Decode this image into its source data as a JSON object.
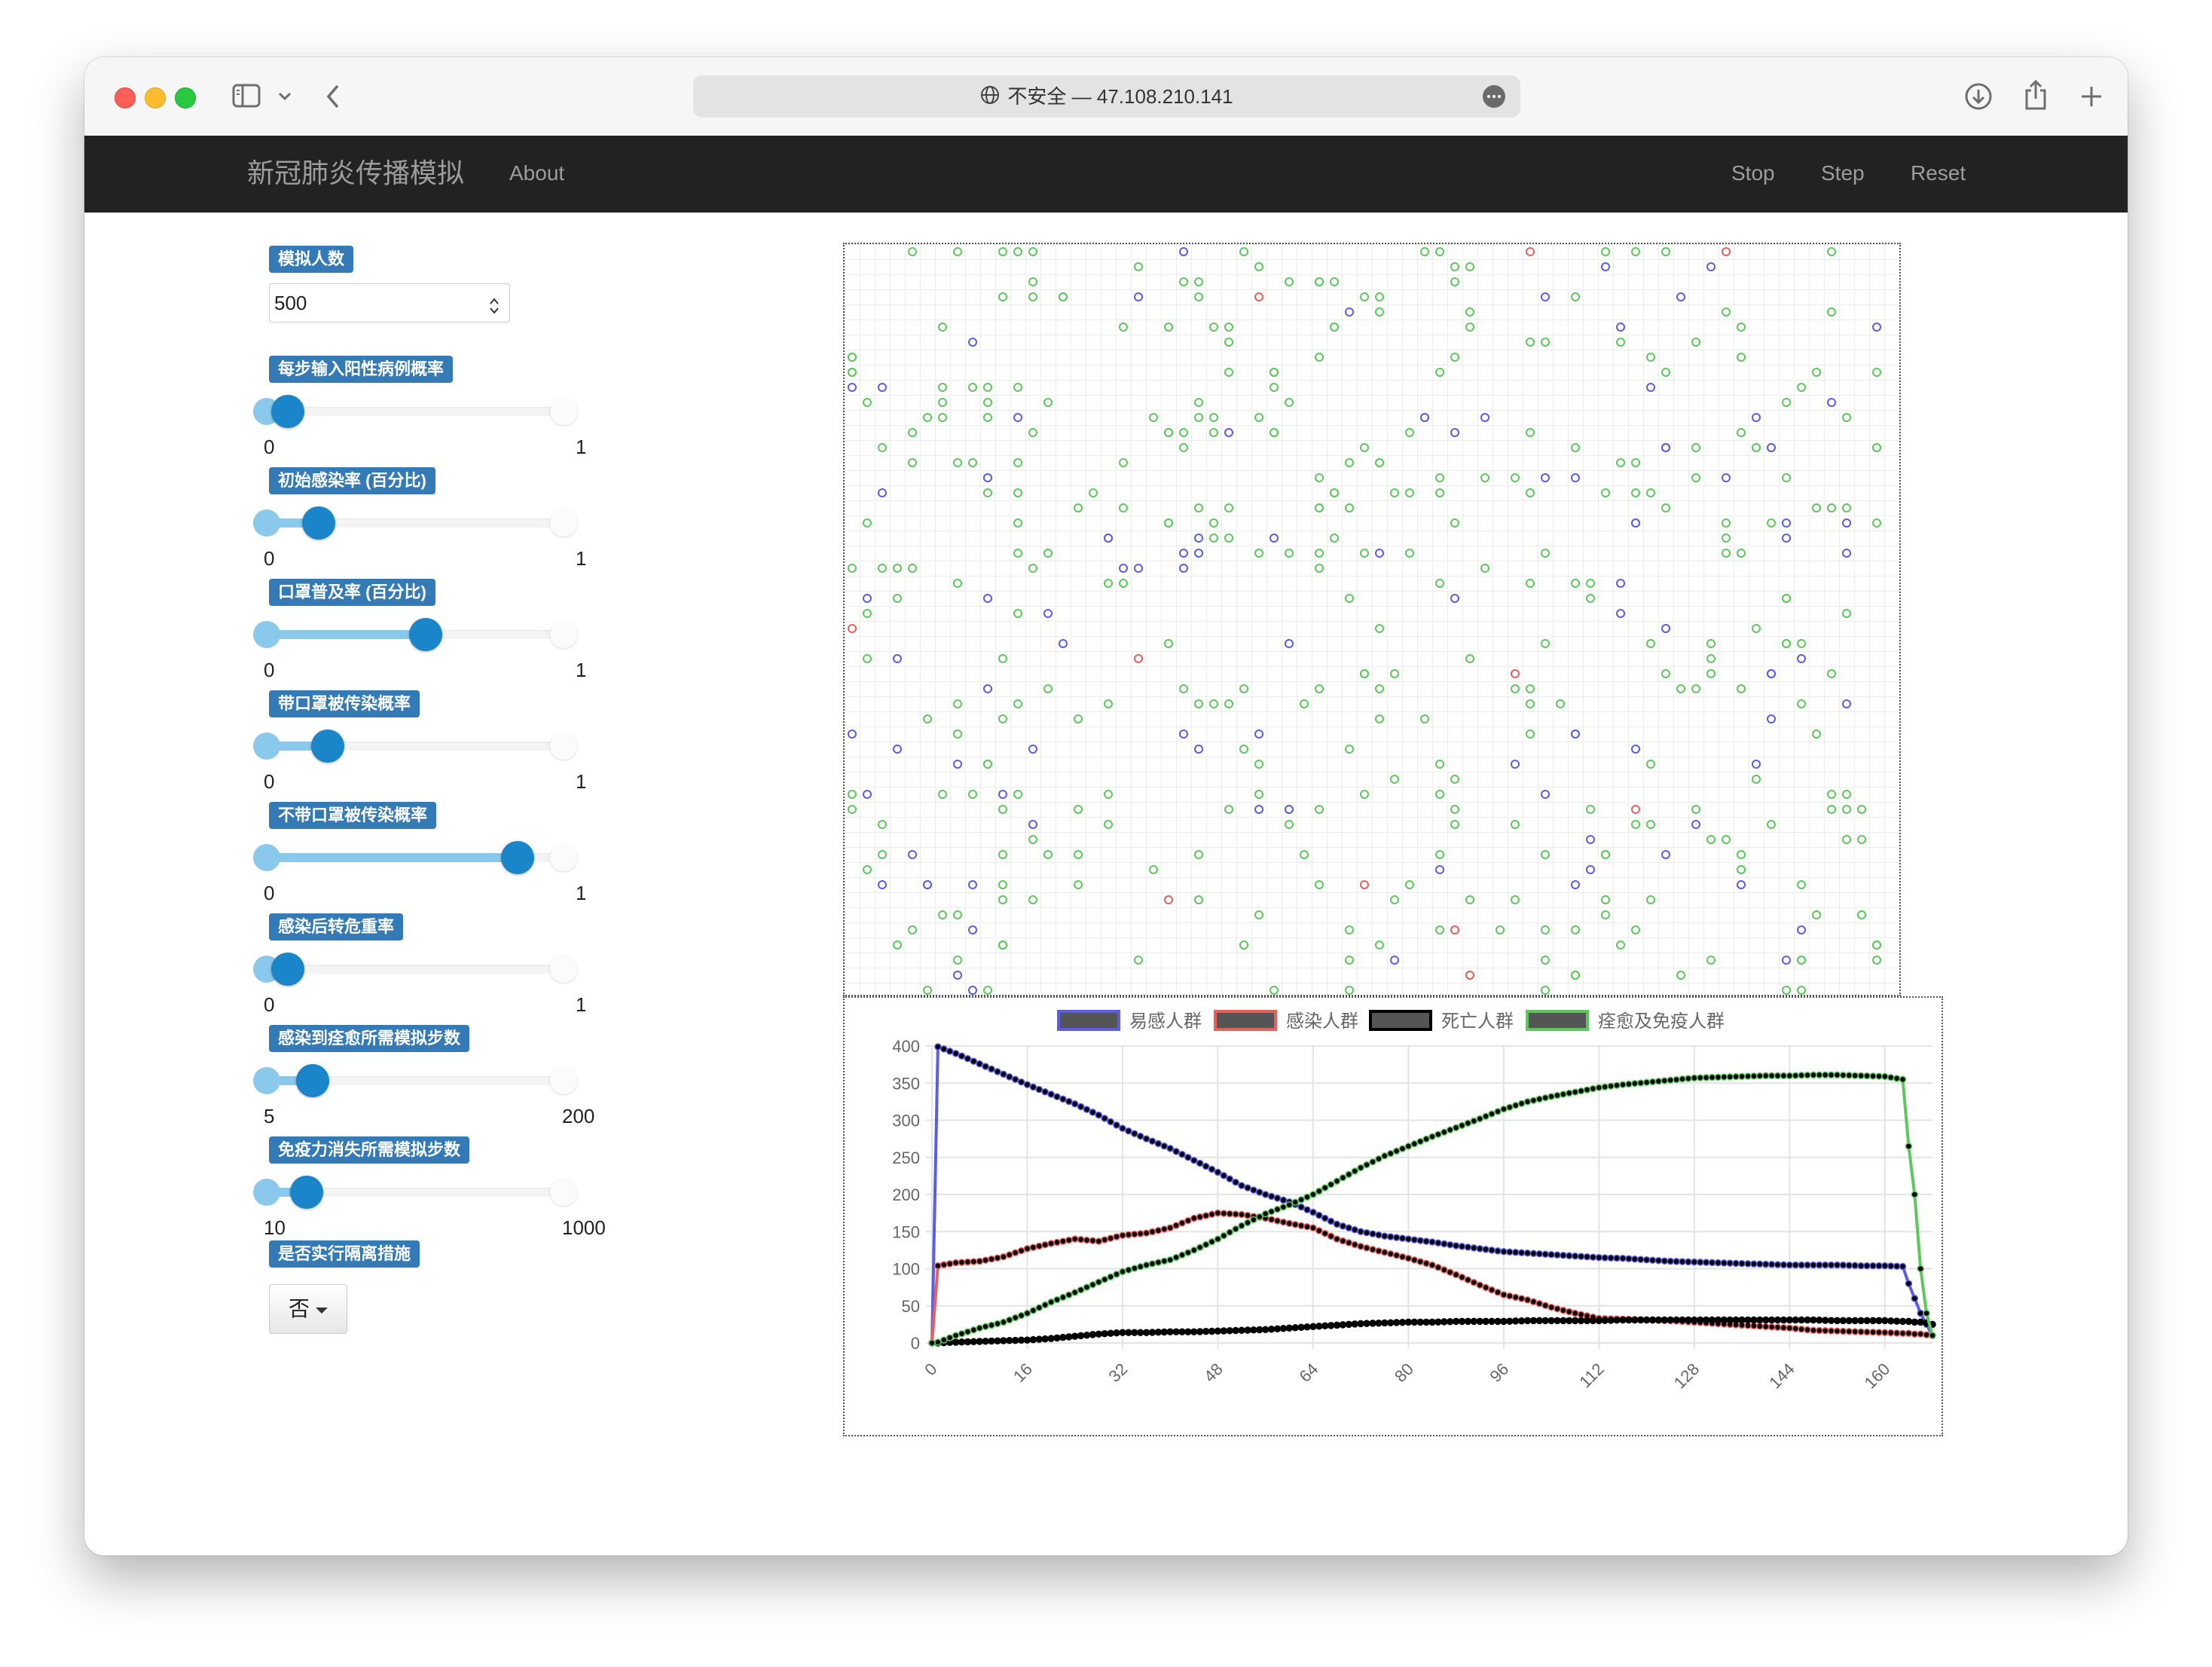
{
  "browser": {
    "url_security": "不安全",
    "url_separator": "—",
    "url_host": "47.108.210.141",
    "icons": [
      "sidebar-icon",
      "chevron-down-icon",
      "back-icon",
      "globe-icon",
      "more-icon",
      "download-icon",
      "share-icon",
      "new-tab-icon"
    ]
  },
  "navbar": {
    "brand": "新冠肺炎传播模拟",
    "about": "About",
    "stop": "Stop",
    "step": "Step",
    "reset": "Reset"
  },
  "controls": {
    "population": {
      "label": "模拟人数",
      "value": "500"
    },
    "sliders": [
      {
        "label": "每步输入阳性病例概率",
        "min": "0",
        "max": "1",
        "fraction": 0.05
      },
      {
        "label": "初始感染率 (百分比)",
        "min": "0",
        "max": "1",
        "fraction": 0.15
      },
      {
        "label": "口罩普及率 (百分比)",
        "min": "0",
        "max": "1",
        "fraction": 0.5
      },
      {
        "label": "带口罩被传染概率",
        "min": "0",
        "max": "1",
        "fraction": 0.18
      },
      {
        "label": "不带口罩被传染概率",
        "min": "0",
        "max": "1",
        "fraction": 0.8
      },
      {
        "label": "感染后转危重率",
        "min": "0",
        "max": "1",
        "fraction": 0.05
      },
      {
        "label": "感染到痊愈所需模拟步数",
        "min": "5",
        "max": "200",
        "fraction": 0.13
      },
      {
        "label": "免疫力消失所需模拟步数",
        "min": "10",
        "max": "1000",
        "fraction": 0.11
      }
    ],
    "isolation": {
      "label": "是否实行隔离措施",
      "value": "否"
    }
  },
  "colors": {
    "susceptible": "#5b5ce8",
    "infected": "#e8605c",
    "dead": "#000000",
    "recovered": "#5cc85c",
    "navbar": "#222222",
    "label_bg": "#337ab7"
  },
  "simulation": {
    "counts": {
      "susceptible": 92,
      "infected": 11,
      "recovered": 359
    }
  },
  "chart_data": {
    "type": "line",
    "title": "",
    "xlabel": "",
    "ylabel": "",
    "ylim": [
      0,
      400
    ],
    "yticks": [
      "0",
      "50",
      "100",
      "150",
      "200",
      "250",
      "300",
      "350",
      "400"
    ],
    "xticks": [
      "0",
      "16",
      "32",
      "48",
      "64",
      "80",
      "96",
      "112",
      "128",
      "144",
      "160"
    ],
    "xlim": [
      0,
      168
    ],
    "x": [
      0,
      1,
      4,
      8,
      12,
      16,
      20,
      24,
      28,
      32,
      36,
      40,
      44,
      48,
      52,
      56,
      60,
      64,
      68,
      72,
      76,
      80,
      84,
      88,
      92,
      96,
      100,
      104,
      108,
      112,
      116,
      120,
      124,
      128,
      132,
      136,
      140,
      144,
      148,
      152,
      156,
      160,
      163,
      164,
      165,
      166,
      167,
      168
    ],
    "legend": [
      "易感人群",
      "感染人群",
      "死亡人群",
      "痊愈及免疫人群"
    ],
    "series": [
      {
        "name": "易感人群",
        "color": "#5b5ce8",
        "values": [
          0,
          399,
          390,
          376,
          362,
          348,
          335,
          322,
          307,
          289,
          275,
          262,
          246,
          230,
          212,
          200,
          190,
          176,
          160,
          150,
          144,
          140,
          136,
          131,
          127,
          123,
          121,
          119,
          117,
          115,
          114,
          112,
          110,
          109,
          108,
          107,
          106,
          105,
          105,
          105,
          104,
          104,
          103,
          80,
          60,
          40,
          25,
          10
        ]
      },
      {
        "name": "感染人群",
        "color": "#e8605c",
        "values": [
          0,
          104,
          108,
          110,
          116,
          127,
          134,
          140,
          137,
          145,
          148,
          155,
          168,
          175,
          173,
          168,
          161,
          155,
          140,
          130,
          122,
          114,
          105,
          92,
          78,
          65,
          58,
          48,
          40,
          33,
          32,
          31,
          30,
          28,
          26,
          24,
          22,
          20,
          17,
          16,
          15,
          14,
          13,
          13,
          12,
          12,
          11,
          10
        ]
      },
      {
        "name": "死亡人群",
        "color": "#000000",
        "values": [
          0,
          0,
          1,
          2,
          3,
          4,
          6,
          9,
          12,
          14,
          14,
          15,
          15,
          16,
          17,
          18,
          20,
          22,
          24,
          26,
          27,
          28,
          28,
          29,
          29,
          29,
          30,
          30,
          30,
          30,
          31,
          31,
          31,
          31,
          31,
          31,
          31,
          31,
          31,
          30,
          30,
          30,
          29,
          29,
          28,
          28,
          27,
          25
        ]
      },
      {
        "name": "痊愈及免疫人群",
        "color": "#5cc85c",
        "values": [
          0,
          1,
          10,
          20,
          28,
          40,
          55,
          68,
          82,
          96,
          105,
          112,
          125,
          140,
          158,
          174,
          186,
          200,
          218,
          236,
          252,
          265,
          278,
          290,
          302,
          315,
          325,
          332,
          338,
          344,
          348,
          351,
          354,
          357,
          358,
          359,
          360,
          360,
          361,
          361,
          360,
          359,
          355,
          265,
          200,
          100,
          40,
          10
        ]
      }
    ]
  }
}
